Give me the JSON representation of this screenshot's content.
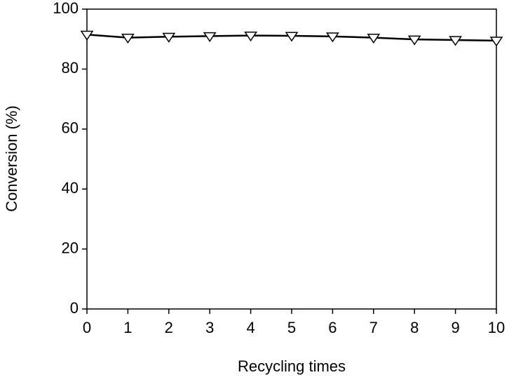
{
  "chart_data": {
    "type": "line",
    "x_label": "Recycling times",
    "y_label": "Conversion (%)",
    "x": [
      0,
      1,
      2,
      3,
      4,
      5,
      6,
      7,
      8,
      9,
      10
    ],
    "series": [
      {
        "color": "#000000",
        "marker": "triangle-down",
        "values": [
          91.5,
          90.5,
          90.8,
          91.0,
          91.2,
          91.1,
          90.9,
          90.5,
          89.9,
          89.7,
          89.5
        ]
      }
    ],
    "xlim": [
      0,
      10
    ],
    "xticks": [
      0,
      1,
      2,
      3,
      4,
      5,
      6,
      7,
      8,
      9,
      10
    ],
    "ylim": [
      0,
      100
    ],
    "yticks": [
      0,
      20,
      40,
      60,
      80,
      100
    ]
  }
}
